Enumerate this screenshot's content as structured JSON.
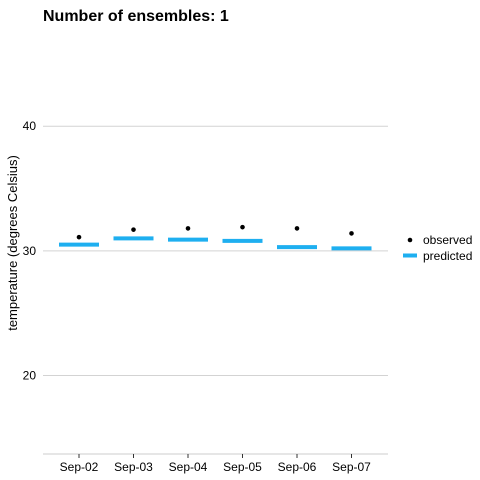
{
  "chart_data": {
    "type": "scatter",
    "title": "Number of ensembles: 1",
    "xlabel": "",
    "ylabel": "temperature (degrees Celsius)",
    "categories": [
      "Sep-02",
      "Sep-03",
      "Sep-04",
      "Sep-05",
      "Sep-06",
      "Sep-07"
    ],
    "ylim": [
      13.7,
      47.4
    ],
    "yticks": [
      20,
      30,
      40
    ],
    "grid": true,
    "legend_position": "right",
    "series": [
      {
        "name": "observed",
        "mark": "point",
        "color": "#000000",
        "values": [
          31.1,
          31.7,
          31.8,
          31.9,
          31.8,
          31.4
        ]
      },
      {
        "name": "predicted",
        "mark": "crossbar",
        "color": "#1eaff0",
        "values": [
          30.5,
          31.0,
          30.9,
          30.8,
          30.3,
          30.2
        ]
      }
    ]
  }
}
